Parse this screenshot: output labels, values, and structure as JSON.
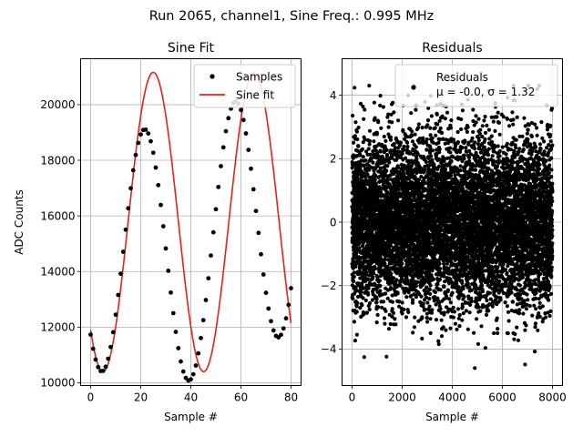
{
  "figure_title": "Run 2065, channel1, Sine Freq.: 0.995 MHz",
  "chart_data": [
    {
      "type": "scatter",
      "title": "Sine Fit",
      "xlabel": "Sample #",
      "ylabel": "ADC Counts",
      "xlim": [
        -4,
        84
      ],
      "ylim": [
        9900,
        21650
      ],
      "xticks": [
        0,
        20,
        40,
        60,
        80
      ],
      "yticks": [
        10000,
        12000,
        14000,
        16000,
        18000,
        20000
      ],
      "grid": true,
      "legend_position": "top-right",
      "legend": [
        "Samples",
        "Sine fit"
      ],
      "fit_params": {
        "offset": 15780,
        "amplitude": 5380,
        "period_samples": 40.2,
        "peak_sample": 25
      },
      "series": [
        {
          "name": "Samples",
          "style": "black-dots",
          "x": [
            0,
            1,
            2,
            3,
            4,
            5,
            6,
            7,
            8,
            9,
            10,
            11,
            12,
            13,
            14,
            15,
            16,
            17,
            18,
            19,
            20,
            21,
            22,
            23,
            24,
            25,
            26,
            27,
            28,
            29,
            30,
            31,
            32,
            33,
            34,
            35,
            36,
            37,
            38,
            39,
            40,
            41,
            42,
            43,
            44,
            45,
            46,
            47,
            48,
            49,
            50,
            51,
            52,
            53,
            54,
            55,
            56,
            57,
            58,
            59,
            60,
            61,
            62,
            63,
            64,
            65,
            66,
            67,
            68,
            69,
            70,
            71,
            72,
            73,
            74,
            75,
            76,
            77,
            78,
            79,
            80
          ],
          "y": [
            11733,
            11224,
            10834,
            10560,
            10422,
            10427,
            10577,
            10866,
            11284,
            11818,
            12449,
            13157,
            13919,
            14710,
            15504,
            16274,
            16994,
            17640,
            18189,
            18623,
            18926,
            19087,
            19099,
            18963,
            18683,
            18270,
            17737,
            17105,
            16393,
            15627,
            14830,
            14026,
            13243,
            12503,
            11830,
            11245,
            10766,
            10406,
            10175,
            10080,
            10124,
            10306,
            10620,
            11058,
            11607,
            12252,
            12975,
            13756,
            14575,
            15410,
            16238,
            17039,
            17788,
            18463,
            19043,
            19512,
            19854,
            20058,
            20119,
            20036,
            19809,
            19448,
            18964,
            18373,
            17696,
            16955,
            16177,
            15389,
            14619,
            13893,
            13236,
            12670,
            12213,
            11882,
            11686,
            11632,
            11722,
            11953,
            12317,
            12804,
            13400
          ]
        },
        {
          "name": "Sine fit",
          "style": "red-line",
          "color": "#e8201a"
        }
      ]
    },
    {
      "type": "scatter",
      "title": "Residuals",
      "xlabel": "Sample #",
      "ylabel": "",
      "xlim": [
        -400,
        8400
      ],
      "ylim": [
        -5.15,
        5.15
      ],
      "xticks": [
        0,
        2000,
        4000,
        6000,
        8000
      ],
      "yticks": [
        -4,
        -2,
        0,
        2,
        4
      ],
      "grid": true,
      "legend_position": "top-right",
      "legend": [
        "Residuals"
      ],
      "legend_stats": "μ = -0.0, σ = 1.32",
      "series": [
        {
          "name": "Residuals",
          "style": "black-dots",
          "n_points": 8000,
          "x_range": [
            0,
            8000
          ],
          "mean": -0.0,
          "std": 1.32,
          "clip": [
            -4.6,
            4.3
          ]
        }
      ]
    }
  ]
}
